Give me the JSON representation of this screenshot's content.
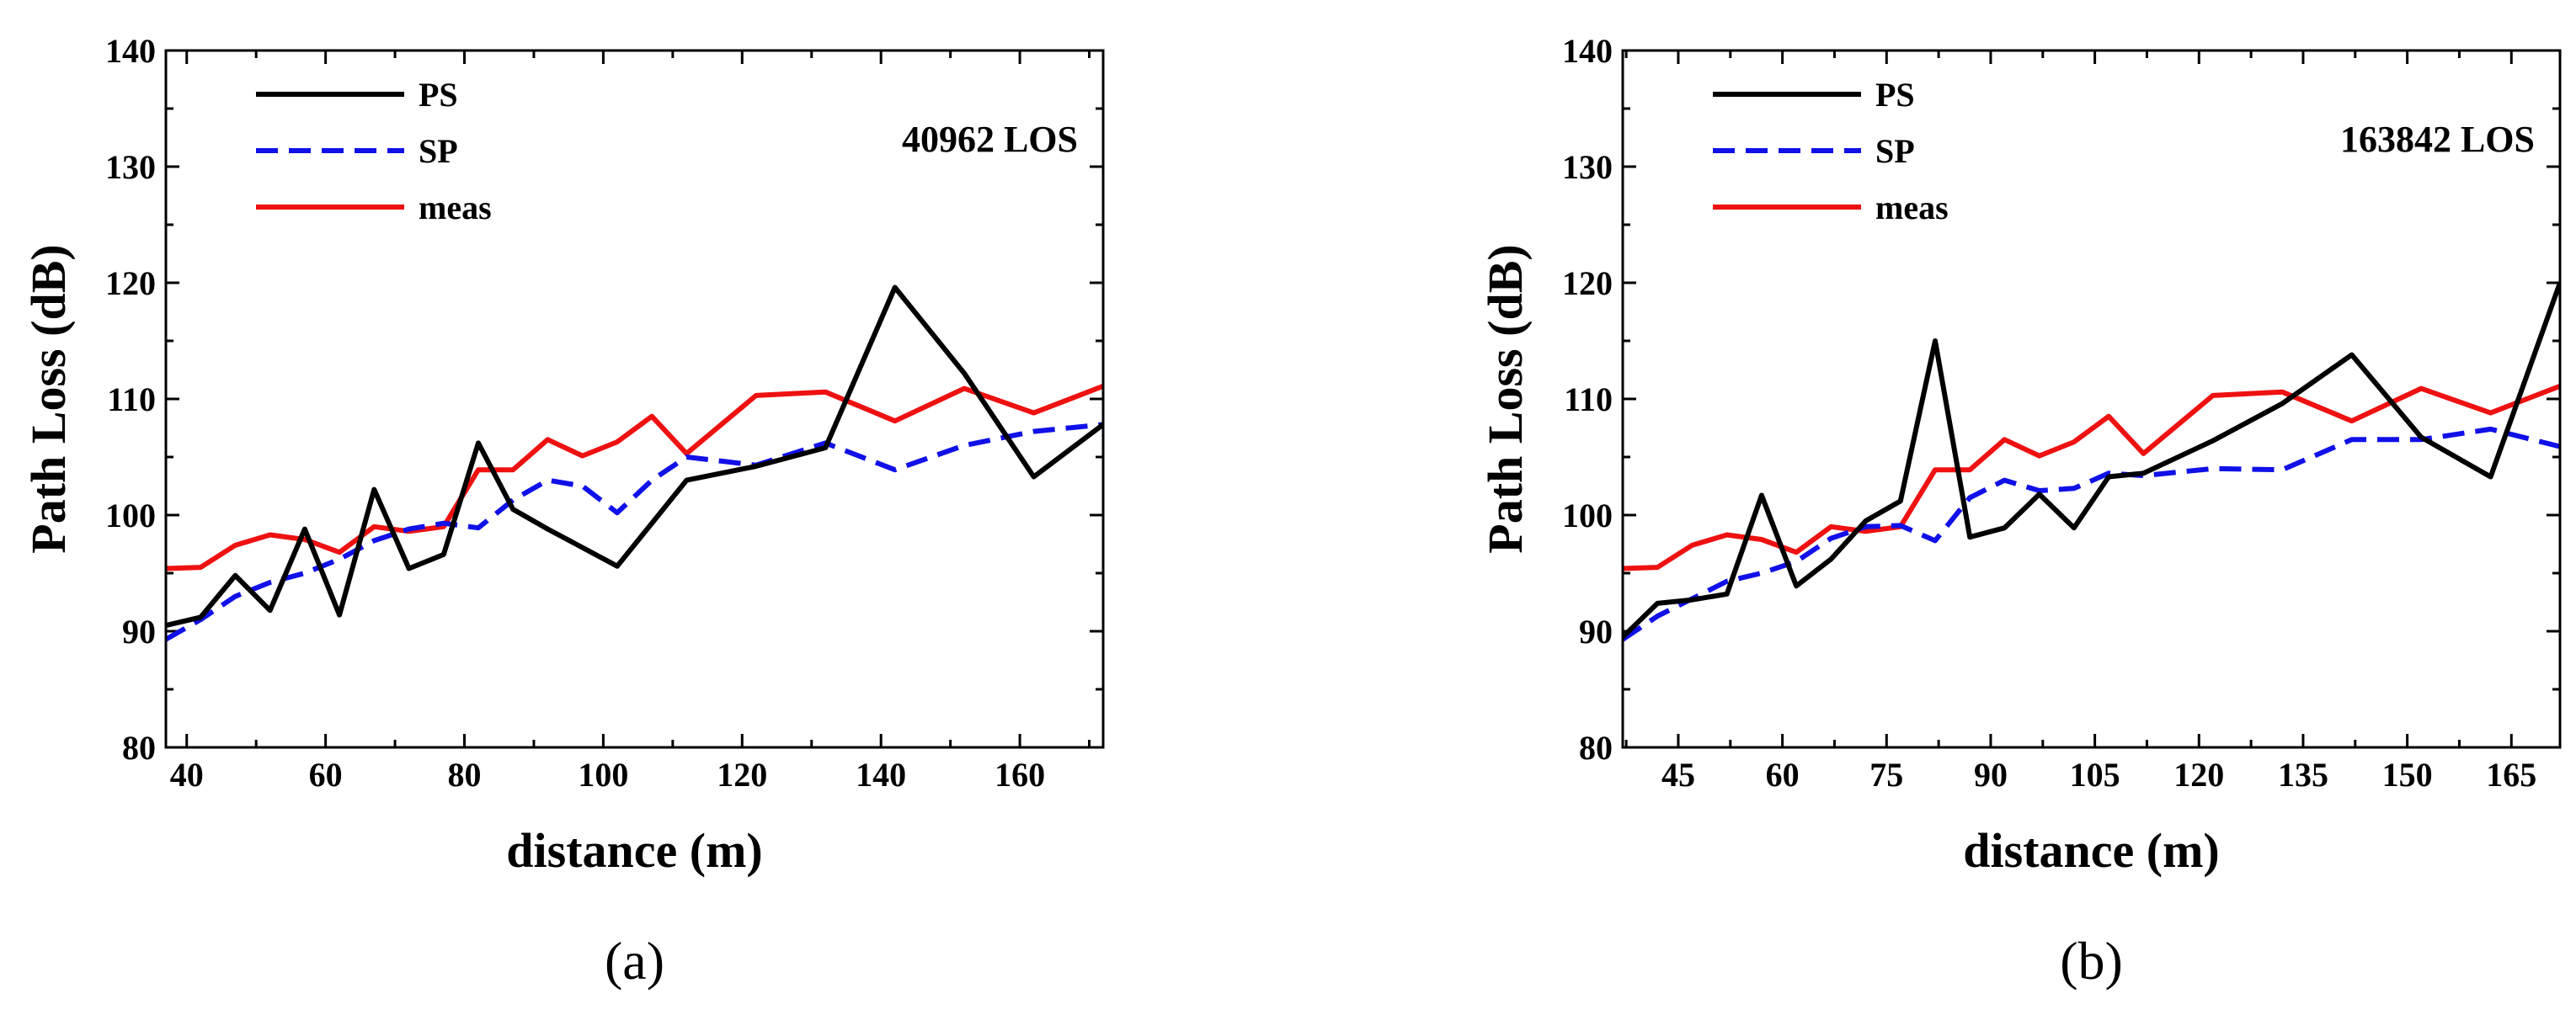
{
  "colors": {
    "PS": "#000000",
    "SP": "#1010e8",
    "meas": "#ee1111"
  },
  "chart_data": [
    {
      "type": "line",
      "panel_label": "(a)",
      "annotation": "40962  LOS",
      "xlabel": "distance (m)",
      "ylabel": "Path Loss (dB)",
      "xlim": [
        37,
        172
      ],
      "ylim": [
        80,
        140
      ],
      "xticks": [
        40,
        60,
        80,
        100,
        120,
        140,
        160
      ],
      "yticks": [
        80,
        90,
        100,
        110,
        120,
        130,
        140
      ],
      "legend_position": "top-left",
      "series": [
        {
          "name": "PS",
          "style": "solid",
          "x": [
            37,
            42,
            47,
            52,
            57,
            62,
            67,
            72,
            77,
            82,
            87,
            92,
            97,
            102,
            107,
            112,
            122,
            132,
            142,
            152,
            162,
            172
          ],
          "y": [
            90.5,
            91.2,
            94.8,
            91.8,
            98.8,
            91.4,
            102.2,
            95.4,
            96.6,
            106.2,
            100.5,
            98.8,
            97.2,
            95.6,
            99.3,
            103.0,
            104.2,
            105.8,
            119.6,
            112.2,
            103.3,
            107.8
          ]
        },
        {
          "name": "SP",
          "style": "dashed",
          "x": [
            37,
            42,
            47,
            52,
            57,
            62,
            67,
            72,
            77,
            82,
            87,
            92,
            97,
            102,
            107,
            112,
            122,
            132,
            142,
            152,
            162,
            172
          ],
          "y": [
            89.3,
            91.0,
            93.0,
            94.2,
            95.0,
            96.2,
            97.8,
            98.8,
            99.3,
            98.9,
            101.3,
            103.0,
            102.5,
            100.2,
            103.0,
            105.0,
            104.3,
            106.2,
            103.9,
            106.0,
            107.2,
            107.8
          ]
        },
        {
          "name": "meas",
          "style": "solid",
          "x": [
            37,
            42,
            47,
            52,
            57,
            62,
            67,
            72,
            77,
            82,
            87,
            92,
            97,
            102,
            107,
            112,
            122,
            132,
            142,
            152,
            162,
            172
          ],
          "y": [
            95.4,
            95.5,
            97.4,
            98.3,
            97.9,
            96.8,
            99.0,
            98.6,
            99.0,
            103.9,
            103.9,
            106.5,
            105.1,
            106.3,
            108.5,
            105.3,
            110.3,
            110.6,
            108.1,
            110.9,
            108.8,
            111.1
          ]
        }
      ]
    },
    {
      "type": "line",
      "panel_label": "(b)",
      "annotation": "163842  LOS",
      "xlabel": "distance (m)",
      "ylabel": "Path Loss (dB)",
      "xlim": [
        37,
        172
      ],
      "ylim": [
        80,
        140
      ],
      "xticks": [
        45,
        60,
        75,
        90,
        105,
        120,
        135,
        150,
        165
      ],
      "yticks": [
        80,
        90,
        100,
        110,
        120,
        130,
        140
      ],
      "legend_position": "top-left",
      "series": [
        {
          "name": "PS",
          "style": "solid",
          "x": [
            37,
            42,
            47,
            52,
            57,
            62,
            67,
            72,
            77,
            82,
            87,
            92,
            97,
            102,
            107,
            112,
            122,
            132,
            142,
            152,
            162,
            172
          ],
          "y": [
            89.5,
            92.4,
            92.7,
            93.2,
            101.7,
            93.9,
            96.2,
            99.5,
            101.2,
            115.0,
            98.1,
            98.9,
            101.8,
            98.9,
            103.3,
            103.6,
            106.4,
            109.6,
            113.8,
            106.7,
            103.3,
            120.0
          ]
        },
        {
          "name": "SP",
          "style": "dashed",
          "x": [
            37,
            42,
            47,
            52,
            57,
            62,
            67,
            72,
            77,
            82,
            87,
            92,
            97,
            102,
            107,
            112,
            122,
            132,
            142,
            152,
            162,
            172
          ],
          "y": [
            89.3,
            91.3,
            92.8,
            94.3,
            95.0,
            96.0,
            98.0,
            99.0,
            99.1,
            97.8,
            101.5,
            103.0,
            102.1,
            102.3,
            103.6,
            103.4,
            104.0,
            103.9,
            106.5,
            106.5,
            107.4,
            105.9
          ]
        },
        {
          "name": "meas",
          "style": "solid",
          "x": [
            37,
            42,
            47,
            52,
            57,
            62,
            67,
            72,
            77,
            82,
            87,
            92,
            97,
            102,
            107,
            112,
            122,
            132,
            142,
            152,
            162,
            172
          ],
          "y": [
            95.4,
            95.5,
            97.4,
            98.3,
            97.9,
            96.8,
            99.0,
            98.6,
            99.0,
            103.9,
            103.9,
            106.5,
            105.1,
            106.3,
            108.5,
            105.3,
            110.3,
            110.6,
            108.1,
            110.9,
            108.8,
            111.1
          ]
        }
      ]
    }
  ]
}
